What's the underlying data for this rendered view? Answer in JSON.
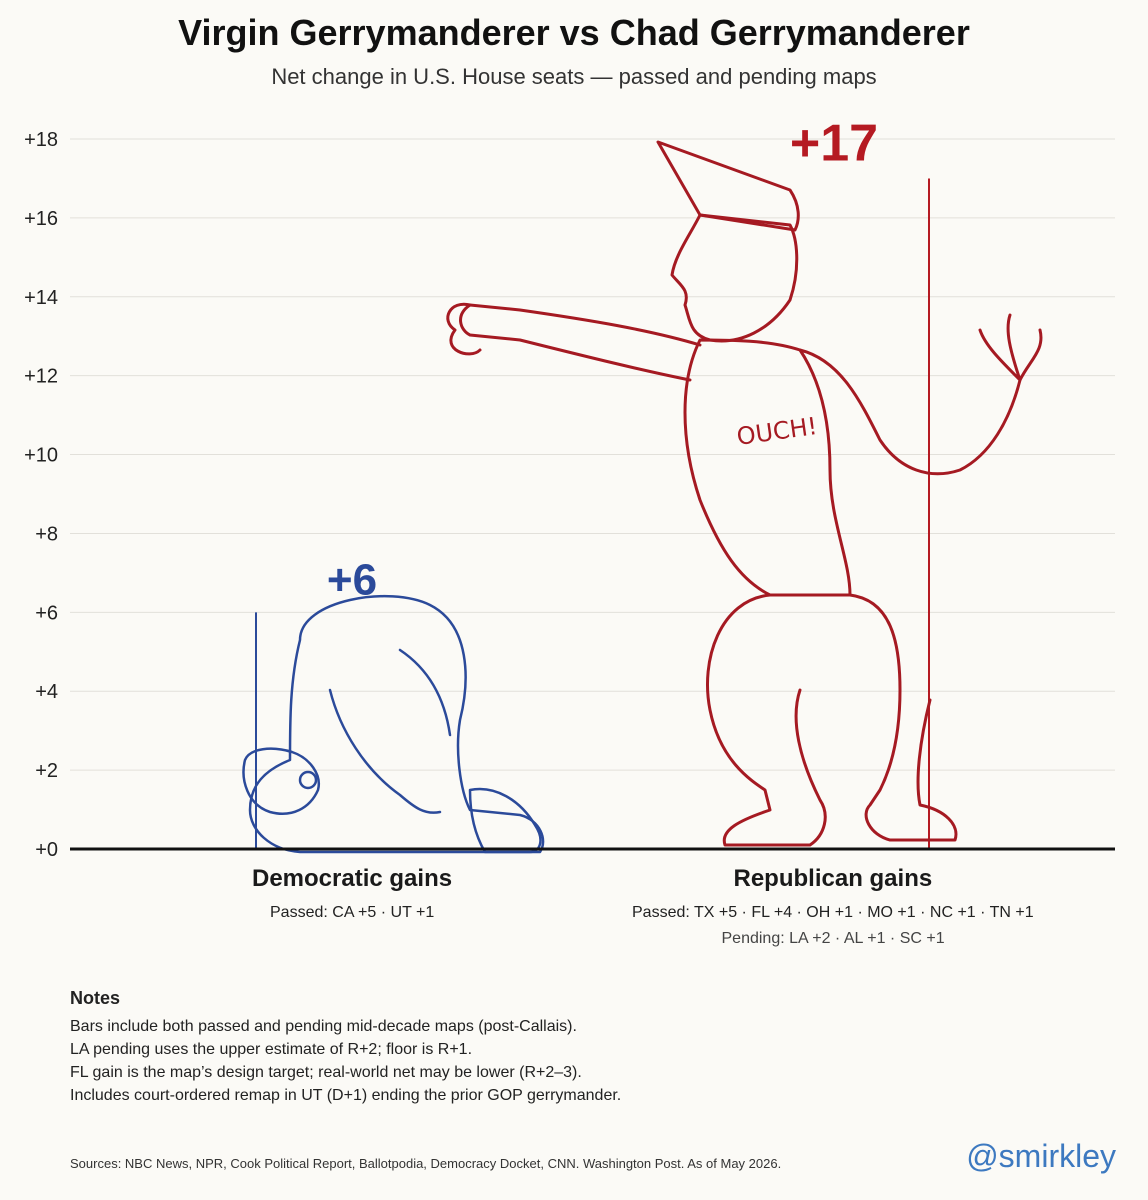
{
  "title": "Virgin Gerrymanderer vs Chad Gerrymanderer",
  "subtitle": "Net change in U.S. House seats — passed and pending maps",
  "chart_data": {
    "type": "bar",
    "categories": [
      "Democratic gains",
      "Republican gains"
    ],
    "values": [
      6,
      17
    ],
    "value_labels": [
      "+6",
      "+17"
    ],
    "ylim": [
      0,
      18
    ],
    "yticks": [
      0,
      2,
      4,
      6,
      8,
      10,
      12,
      14,
      16,
      18
    ],
    "ytick_labels": [
      "+0",
      "+2",
      "+4",
      "+6",
      "+8",
      "+10",
      "+12",
      "+14",
      "+16",
      "+18"
    ],
    "grid": true,
    "colors": {
      "dem": "#2b4a9a",
      "rep": "#b51a22"
    },
    "character_text": "OUCH!"
  },
  "details": {
    "dem_passed": "Passed: CA +5 · UT +1",
    "rep_passed": "Passed: TX +5 · FL +4 · OH +1 · MO +1 · NC +1 · TN +1",
    "rep_pending": "Pending: LA +2 · AL +1 · SC +1"
  },
  "notes": {
    "title": "Notes",
    "lines": [
      "Bars include both passed and pending mid-decade maps (post-Callais).",
      "LA pending uses the upper estimate of R+2; floor is R+1.",
      "FL gain is the map’s design target; real-world net may be lower (R+2–3).",
      "Includes court-ordered remap in UT (D+1) ending the prior GOP gerrymander."
    ]
  },
  "sources": "Sources: NBC News, NPR, Cook Political Report, Ballotpodia, Democracy Docket, CNN. Washington Post. As of May 2026.",
  "handle": "@smirkley"
}
